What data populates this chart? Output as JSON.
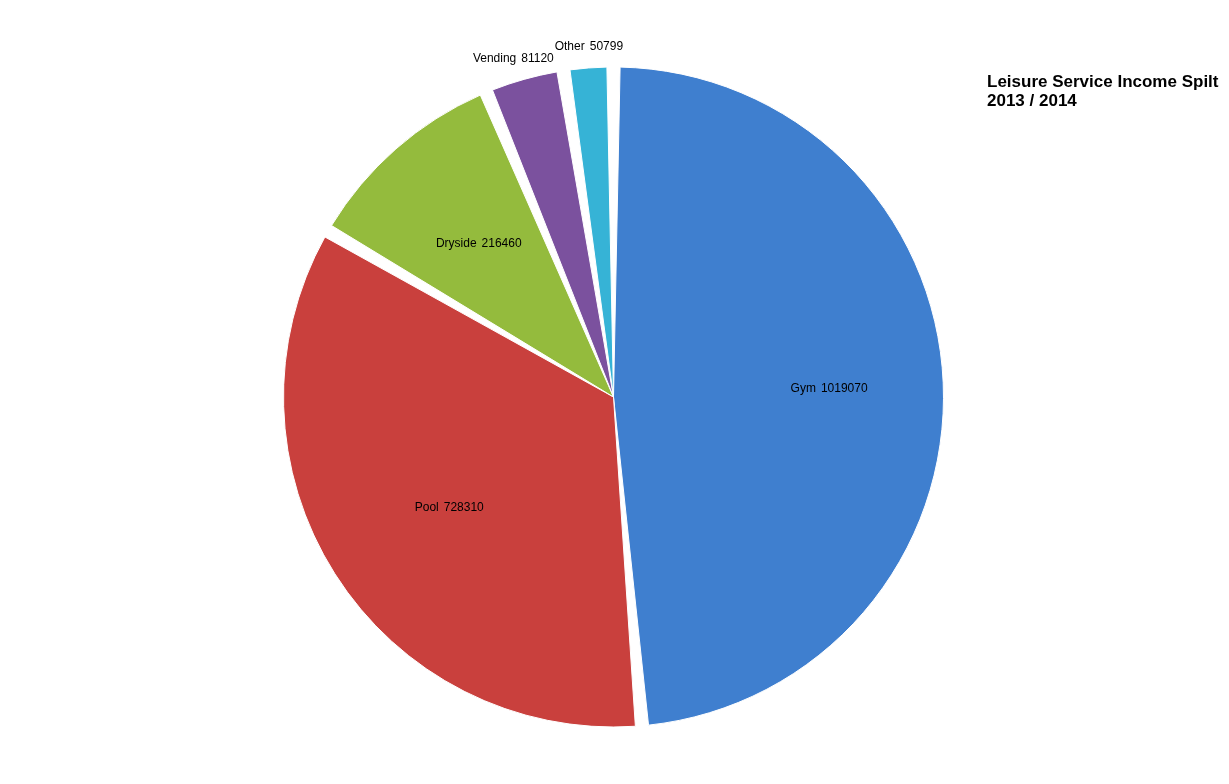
{
  "chart_data": {
    "type": "pie",
    "title": "Leisure Service Income Spilt\n2013 / 2014",
    "categories": [
      "Gym",
      "Pool",
      "Dryside",
      "Vending",
      "Other"
    ],
    "values": [
      1019070,
      728310,
      216460,
      81120,
      50799
    ],
    "colors": [
      "#3f7fcf",
      "#c9403d",
      "#94bb3d",
      "#7b519e",
      "#36b3d6"
    ],
    "data_labels": true,
    "legend": false
  }
}
